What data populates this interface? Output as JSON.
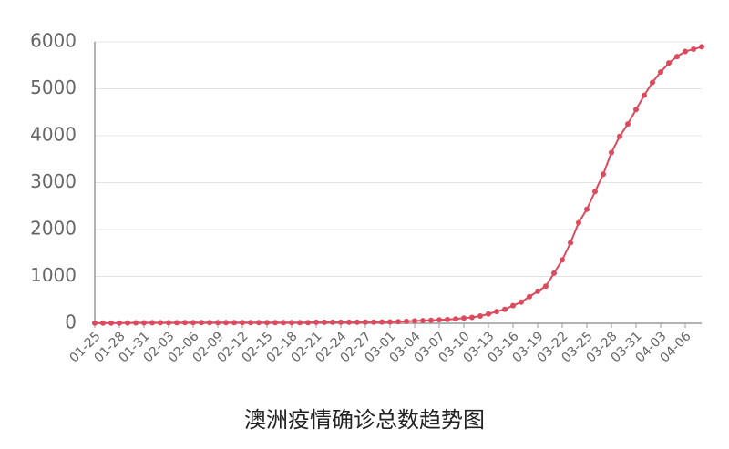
{
  "chart_data": {
    "type": "line",
    "title": "澳洲疫情确诊总数趋势图",
    "categories": [
      "01-25",
      null,
      null,
      "01-28",
      null,
      null,
      "01-31",
      null,
      null,
      "02-03",
      null,
      null,
      "02-06",
      null,
      null,
      "02-09",
      null,
      null,
      "02-12",
      null,
      null,
      "02-15",
      null,
      null,
      "02-18",
      null,
      null,
      "02-21",
      null,
      null,
      "02-24",
      null,
      null,
      "02-27",
      null,
      null,
      "03-01",
      null,
      null,
      "03-04",
      null,
      null,
      "03-07",
      null,
      null,
      "03-10",
      null,
      null,
      "03-13",
      null,
      null,
      "03-16",
      null,
      null,
      "03-19",
      null,
      null,
      "03-22",
      null,
      null,
      "03-25",
      null,
      null,
      "03-28",
      null,
      null,
      "03-31",
      null,
      null,
      "04-03",
      null,
      null,
      "04-06",
      null,
      null
    ],
    "values": [
      4,
      4,
      5,
      5,
      7,
      9,
      9,
      12,
      12,
      12,
      13,
      14,
      15,
      15,
      15,
      15,
      15,
      15,
      15,
      15,
      15,
      15,
      15,
      15,
      15,
      15,
      15,
      21,
      21,
      22,
      22,
      23,
      23,
      25,
      25,
      27,
      29,
      33,
      41,
      52,
      57,
      63,
      74,
      80,
      92,
      112,
      127,
      156,
      199,
      250,
      297,
      377,
      452,
      568,
      681,
      791,
      1071,
      1352,
      1716,
      2146,
      2431,
      2810,
      3179,
      3640,
      3985,
      4250,
      4559,
      4862,
      5136,
      5358,
      5550,
      5687,
      5797,
      5844,
      5895
    ],
    "color": "#dc4a5e",
    "ylim": [
      0,
      6000
    ],
    "yticks": [
      0,
      1000,
      2000,
      3000,
      4000,
      5000,
      6000
    ],
    "grid": true
  }
}
